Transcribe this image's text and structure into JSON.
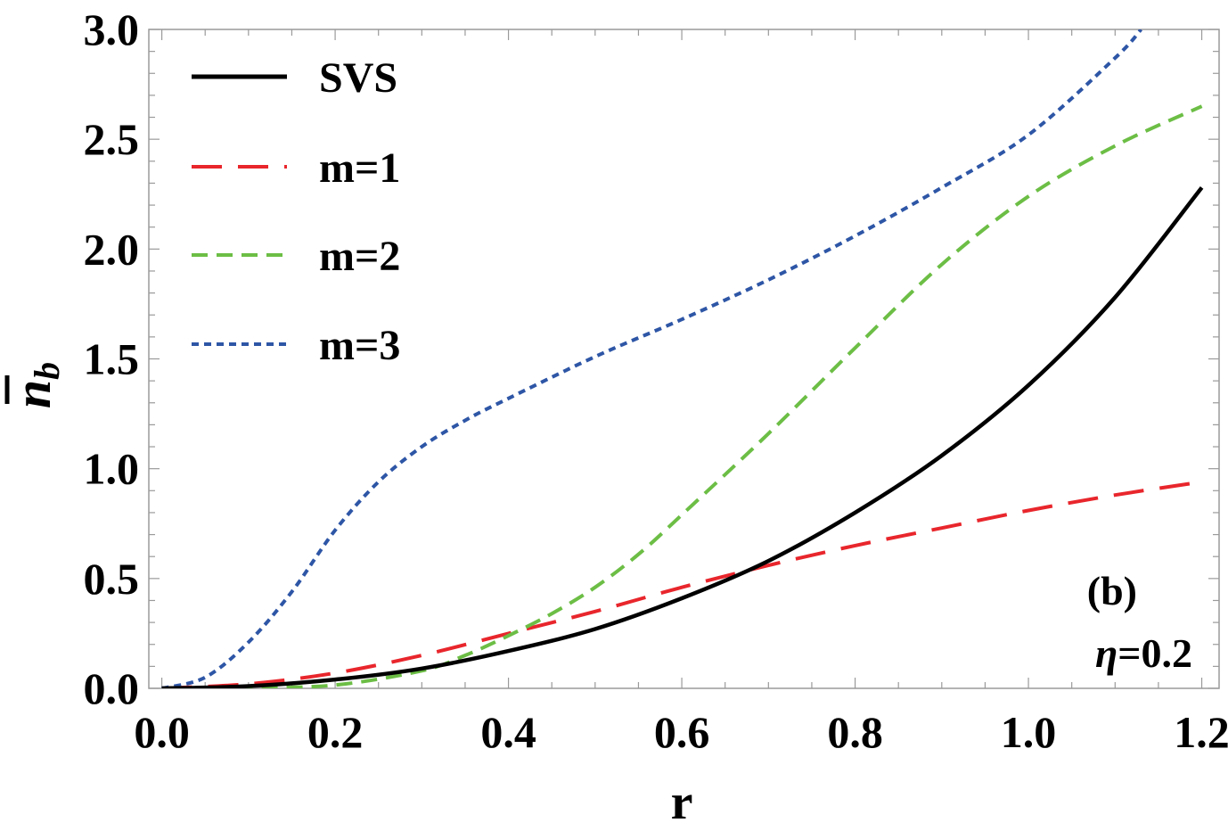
{
  "chart_data": {
    "type": "line",
    "title": "",
    "xlabel": "r",
    "ylabel_main": "n",
    "ylabel_sub": "b",
    "xlim": [
      -0.015,
      1.22
    ],
    "ylim": [
      0,
      3.0
    ],
    "xticks": [
      "0.0",
      "0.2",
      "0.4",
      "0.6",
      "0.8",
      "1.0",
      "1.2"
    ],
    "xtick_values": [
      0,
      0.2,
      0.4,
      0.6,
      0.8,
      1.0,
      1.2
    ],
    "yticks": [
      "0.0",
      "0.5",
      "1.0",
      "1.5",
      "2.0",
      "2.5",
      "3.0"
    ],
    "ytick_values": [
      0,
      0.5,
      1.0,
      1.5,
      2.0,
      2.5,
      3.0
    ],
    "grid": false,
    "legend_position": "top-left",
    "annotations": {
      "panel": "(b)",
      "eta_symbol": "η",
      "eta_value": "=0.2"
    },
    "series": [
      {
        "name": "SVS",
        "color": "#000000",
        "dash": "solid",
        "x": [
          0,
          0.1,
          0.2,
          0.3,
          0.4,
          0.5,
          0.6,
          0.7,
          0.8,
          0.9,
          1.0,
          1.1,
          1.2
        ],
        "y": [
          0,
          0.01,
          0.04,
          0.09,
          0.17,
          0.27,
          0.41,
          0.58,
          0.8,
          1.06,
          1.38,
          1.78,
          2.28
        ]
      },
      {
        "name": "m=1",
        "color": "#e8262c",
        "dash": "long",
        "x": [
          0,
          0.1,
          0.2,
          0.3,
          0.4,
          0.5,
          0.6,
          0.7,
          0.8,
          0.9,
          1.0,
          1.1,
          1.2
        ],
        "y": [
          0,
          0.02,
          0.07,
          0.15,
          0.25,
          0.35,
          0.46,
          0.56,
          0.65,
          0.73,
          0.81,
          0.88,
          0.94
        ]
      },
      {
        "name": "m=2",
        "color": "#6cbe45",
        "dash": "medium",
        "x": [
          0,
          0.1,
          0.2,
          0.3,
          0.35,
          0.4,
          0.45,
          0.5,
          0.55,
          0.6,
          0.7,
          0.8,
          0.9,
          1.0,
          1.1,
          1.2
        ],
        "y": [
          0,
          0.002,
          0.015,
          0.08,
          0.15,
          0.24,
          0.34,
          0.46,
          0.61,
          0.79,
          1.16,
          1.55,
          1.93,
          2.24,
          2.47,
          2.65
        ]
      },
      {
        "name": "m=3",
        "color": "#2e56a6",
        "dash": "short",
        "x": [
          0,
          0.05,
          0.1,
          0.15,
          0.2,
          0.25,
          0.3,
          0.35,
          0.4,
          0.5,
          0.6,
          0.7,
          0.8,
          0.9,
          1.0,
          1.1,
          1.13
        ],
        "y": [
          0,
          0.05,
          0.21,
          0.44,
          0.72,
          0.94,
          1.1,
          1.22,
          1.32,
          1.51,
          1.68,
          1.86,
          2.06,
          2.28,
          2.52,
          2.87,
          3.0
        ]
      }
    ]
  }
}
